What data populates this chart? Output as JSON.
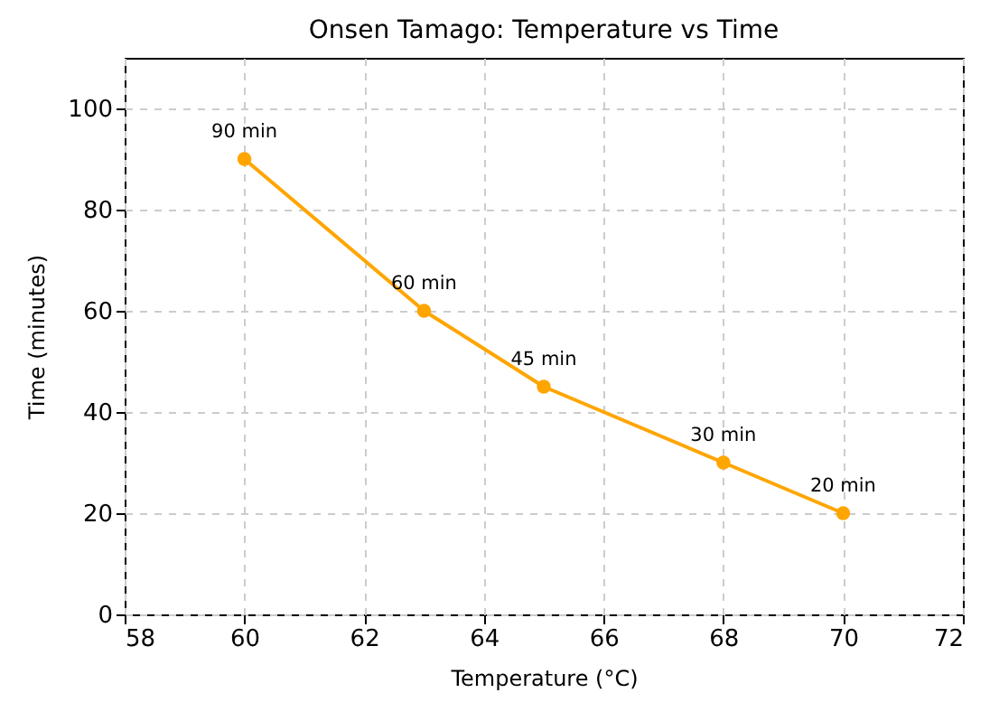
{
  "chart_data": {
    "type": "line",
    "title": "Onsen Tamago: Temperature vs Time",
    "xlabel": "Temperature (°C)",
    "ylabel": "Time (minutes)",
    "x": [
      60,
      63,
      65,
      68,
      70
    ],
    "series": [
      {
        "color": "#ffa500",
        "values": [
          90,
          60,
          45,
          30,
          20
        ],
        "value_labels": [
          "90 min",
          "60 min",
          "45 min",
          "30 min",
          "20 min"
        ]
      }
    ],
    "xlim": [
      58,
      72
    ],
    "xticks": [
      58,
      60,
      62,
      64,
      66,
      68,
      70,
      72
    ],
    "ylim": [
      0,
      110
    ],
    "yticks": [
      0,
      20,
      40,
      60,
      80,
      100
    ],
    "grid": true,
    "marker": "circle",
    "line_style": "solid"
  }
}
